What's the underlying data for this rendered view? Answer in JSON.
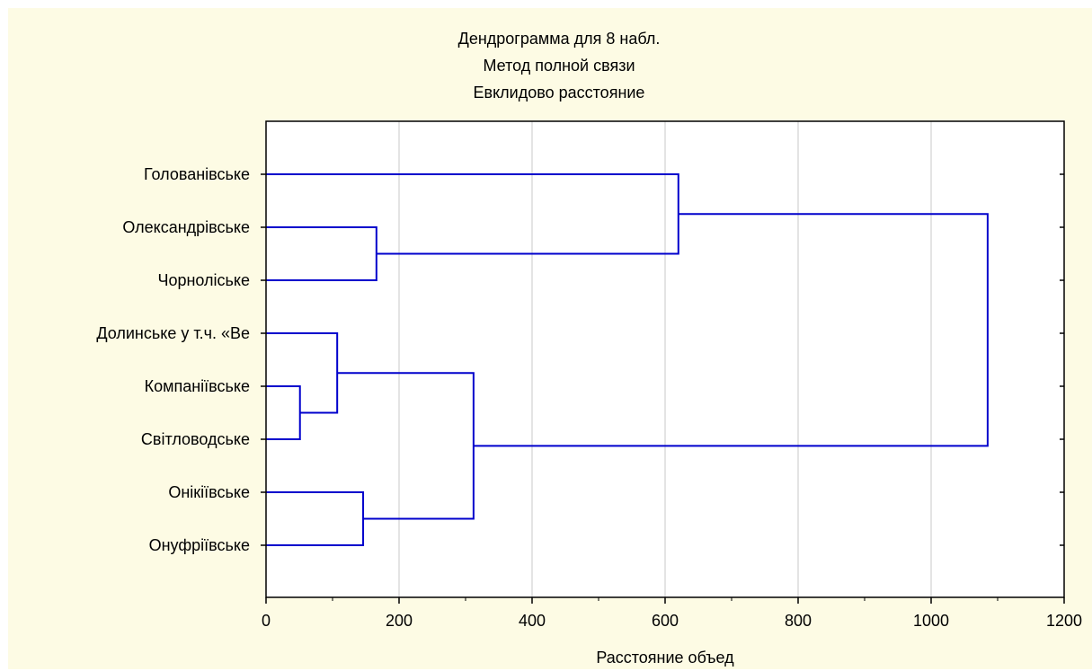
{
  "chart_data": {
    "type": "dendrogram",
    "title": [
      "Дендрограмма для 8 набл.",
      "Метод полной связи",
      "Евклидово расстояние"
    ],
    "xlabel": "Расстояние объед",
    "xlim": [
      0,
      1200
    ],
    "xticks": [
      0,
      200,
      400,
      600,
      800,
      1000,
      1200
    ],
    "minor_ticks": [
      100,
      300,
      500,
      700,
      900,
      1100
    ],
    "grid": true,
    "orientation": "horizontal",
    "leaves": [
      "Голованівське",
      "Олександрівське",
      "Чорнолiське",
      "Долинське у т.ч. «Ве",
      "Компаніївське",
      "Світловодське",
      "Онікіївське",
      "Онуфріївське"
    ],
    "merges": [
      {
        "left": "Компаніївське",
        "right": "Світловодське",
        "height": 51
      },
      {
        "left": "Долинське у т.ч. «Ве",
        "right": "cluster-1",
        "height": 107
      },
      {
        "left": "Онікіївське",
        "right": "Онуфріївське",
        "height": 146
      },
      {
        "left": "Олександрівське",
        "right": "Чорнолiське",
        "height": 166
      },
      {
        "left": "cluster-2",
        "right": "cluster-3",
        "height": 312
      },
      {
        "left": "Голованівське",
        "right": "cluster-4",
        "height": 620
      },
      {
        "left": "cluster-6",
        "right": "cluster-5",
        "height": 1085
      }
    ],
    "colors": {
      "background": "#fdfbe4",
      "plot_area": "#ffffff",
      "line": "#0000cc",
      "grid": "#c8c8c8",
      "axis": "#000000"
    }
  }
}
